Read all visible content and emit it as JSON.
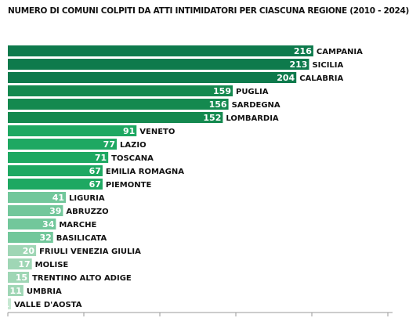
{
  "chart_data": {
    "type": "bar",
    "orientation": "horizontal",
    "title": "NUMERO DI COMUNI COLPITI DA ATTI INTIMIDATORI PER CIASCUNA REGIONE (2010 - 2024)",
    "categories": [
      "CAMPANIA",
      "SICILIA",
      "CALABRIA",
      "PUGLIA",
      "SARDEGNA",
      "LOMBARDIA",
      "VENETO",
      "LAZIO",
      "TOSCANA",
      "EMILIA ROMAGNA",
      "PIEMONTE",
      "LIGURIA",
      "ABRUZZO",
      "MARCHE",
      "BASILICATA",
      "FRIULI VENEZIA GIULIA",
      "MOLISE",
      "TRENTINO ALTO ADIGE",
      "UMBRIA",
      "VALLE D'AOSTA"
    ],
    "values": [
      216,
      213,
      204,
      159,
      156,
      152,
      91,
      77,
      71,
      67,
      67,
      41,
      39,
      34,
      32,
      20,
      17,
      15,
      11,
      1
    ],
    "colors": [
      "#0e7a4c",
      "#0e7a4c",
      "#0e7a4c",
      "#14894f",
      "#14894f",
      "#14894f",
      "#1ea862",
      "#1ea862",
      "#1ea862",
      "#1ea862",
      "#1ea862",
      "#72c79b",
      "#72c79b",
      "#72c79b",
      "#72c79b",
      "#9fd6b5",
      "#9fd6b5",
      "#9fd6b5",
      "#9fd6b5",
      "#c6e8d2"
    ],
    "xlim": [
      0,
      240
    ],
    "grid": false,
    "legend": "none"
  }
}
